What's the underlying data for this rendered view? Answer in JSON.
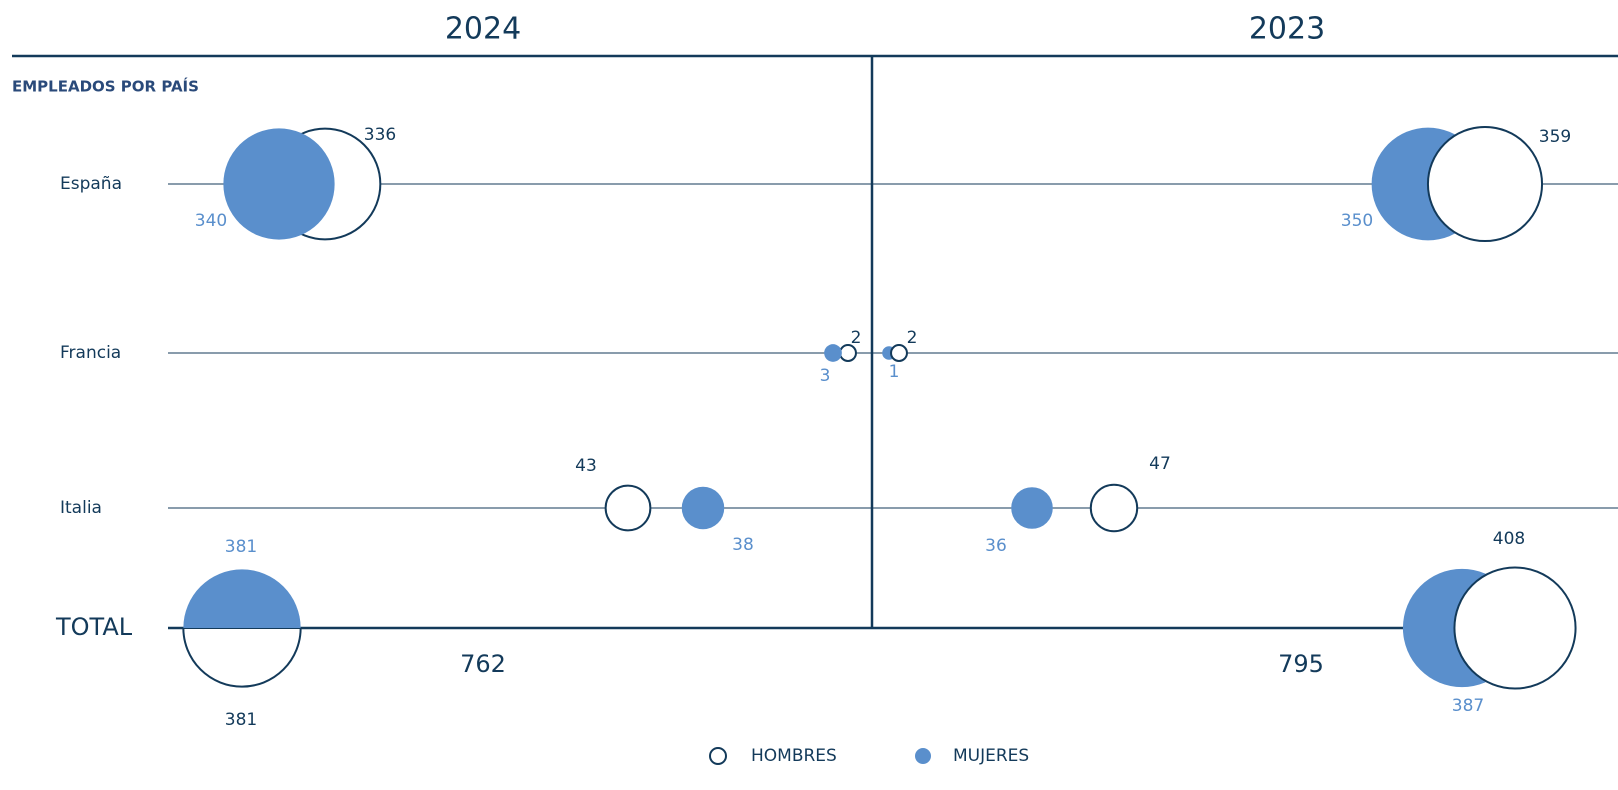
{
  "chart_data": {
    "type": "bubble",
    "title": "EMPLEADOS POR PAÍS",
    "categories": [
      "España",
      "Francia",
      "Italia",
      "TOTAL"
    ],
    "panels": [
      {
        "title": "2024",
        "total": 762,
        "series": [
          {
            "name": "HOMBRES",
            "color": "#ffffff",
            "values": [
              336,
              2,
              43,
              381
            ]
          },
          {
            "name": "MUJERES",
            "color": "#5a8fcc",
            "values": [
              340,
              3,
              38,
              381
            ]
          }
        ]
      },
      {
        "title": "2023",
        "total": 795,
        "series": [
          {
            "name": "HOMBRES",
            "color": "#ffffff",
            "values": [
              359,
              2,
              47,
              408
            ]
          },
          {
            "name": "MUJERES",
            "color": "#5a8fcc",
            "values": [
              350,
              1,
              36,
              387
            ]
          }
        ]
      }
    ]
  }
}
